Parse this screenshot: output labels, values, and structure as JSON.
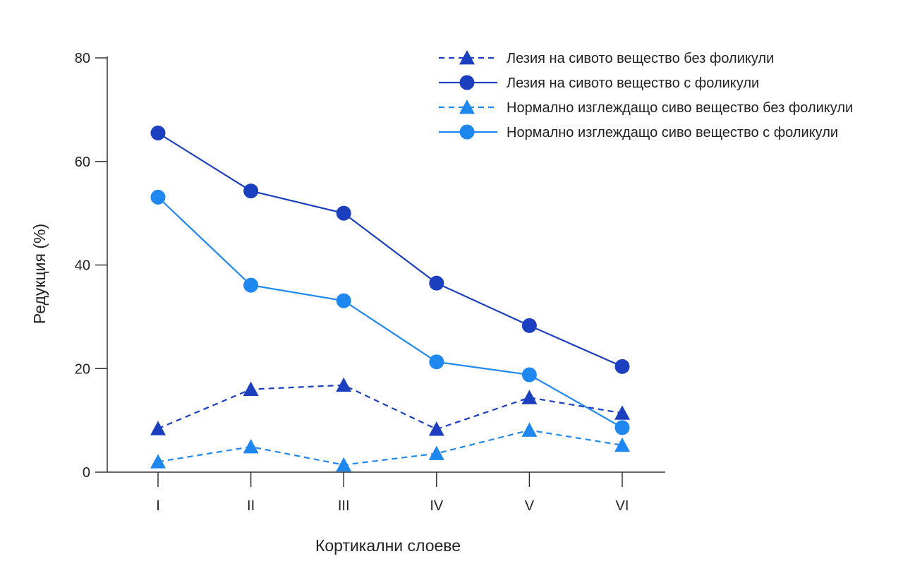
{
  "chart_data": {
    "type": "line",
    "title": "",
    "xlabel": "Кортикални слоеве",
    "ylabel": "Редукция (%)",
    "categories": [
      "I",
      "II",
      "III",
      "IV",
      "V",
      "VI"
    ],
    "ylim": [
      0,
      80
    ],
    "yticks": [
      "0",
      "20",
      "40",
      "60",
      "80"
    ],
    "grid": false,
    "legend_position": "top-right",
    "series": [
      {
        "name": "Лезия на сивото вещество без фоликули",
        "values": [
          8.4,
          16.0,
          16.8,
          8.3,
          14.4,
          11.4
        ],
        "color": "#1b3fbf",
        "line_style": "dashed",
        "marker": "triangle"
      },
      {
        "name": "Лезия на сивото вещество с фоликули",
        "values": [
          65.5,
          54.3,
          50.0,
          36.5,
          28.3,
          20.4
        ],
        "color": "#1b3fbf",
        "line_style": "solid",
        "marker": "circle"
      },
      {
        "name": "Нормално изглеждащо сиво вещество без фоликули",
        "values": [
          2.0,
          4.9,
          1.4,
          3.6,
          8.1,
          5.2
        ],
        "color": "#1e88f0",
        "line_style": "dashed",
        "marker": "triangle"
      },
      {
        "name": "Нормално изглеждащо сиво вещество с фоликули",
        "values": [
          53.1,
          36.1,
          33.1,
          21.3,
          18.8,
          8.6
        ],
        "color": "#1e88f0",
        "line_style": "solid",
        "marker": "circle"
      }
    ]
  }
}
